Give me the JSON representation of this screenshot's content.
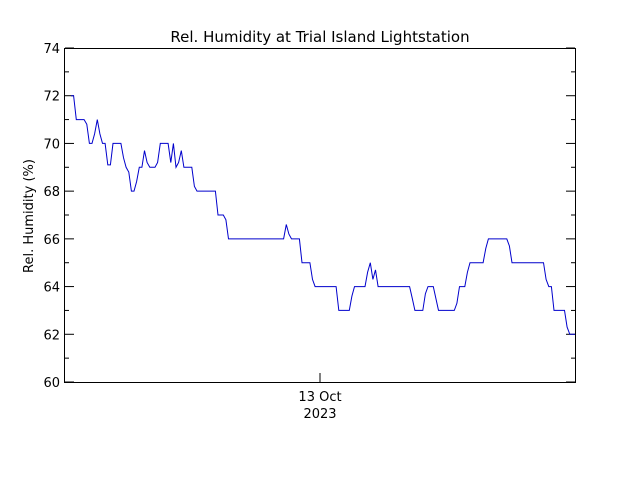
{
  "chart_data": {
    "type": "line",
    "title": "Rel. Humidity at Trial Island Lightstation",
    "ylabel": "Rel. Humidity (%)",
    "xlabel": "",
    "x_tick_label": {
      "line1": "13 Oct",
      "line2": "2023"
    },
    "ylim": [
      60,
      74
    ],
    "y_ticks": [
      60,
      62,
      64,
      66,
      68,
      70,
      72,
      74
    ],
    "y_tick_labels": [
      "60",
      "62",
      "64",
      "66",
      "68",
      "70",
      "72",
      "74"
    ],
    "grid": false,
    "line_color": "#0000cc",
    "series": [
      {
        "values": [
          72,
          72,
          71,
          71,
          71,
          71,
          70.8,
          70,
          70,
          70.4,
          71,
          70.4,
          70,
          70,
          69.1,
          69.1,
          70,
          70,
          70,
          70,
          69.4,
          69,
          68.8,
          68,
          68,
          68.4,
          69,
          69,
          69.7,
          69.2,
          69,
          69,
          69,
          69.2,
          70,
          70,
          70,
          70,
          69.2,
          70,
          69,
          69.2,
          69.7,
          69,
          69,
          69,
          69,
          68.2,
          68,
          68,
          68,
          68,
          68,
          68,
          68,
          68,
          67,
          67,
          67,
          66.8,
          66,
          66,
          66,
          66,
          66,
          66,
          66,
          66,
          66,
          66,
          66,
          66,
          66,
          66,
          66,
          66,
          66,
          66,
          66,
          66,
          66,
          66,
          66.6,
          66.2,
          66,
          66,
          66,
          66,
          65,
          65,
          65,
          65,
          64.3,
          64,
          64,
          64,
          64,
          64,
          64,
          64,
          64,
          64,
          63,
          63,
          63,
          63,
          63,
          63.6,
          64,
          64,
          64,
          64,
          64,
          64.6,
          65,
          64.3,
          64.7,
          64,
          64,
          64,
          64,
          64,
          64,
          64,
          64,
          64,
          64,
          64,
          64,
          64,
          63.5,
          63,
          63,
          63,
          63,
          63.7,
          64,
          64,
          64,
          63.5,
          63,
          63,
          63,
          63,
          63,
          63,
          63,
          63.3,
          64,
          64,
          64,
          64.6,
          65,
          65,
          65,
          65,
          65,
          65,
          65.6,
          66,
          66,
          66,
          66,
          66,
          66,
          66,
          66,
          65.7,
          65,
          65,
          65,
          65,
          65,
          65,
          65,
          65,
          65,
          65,
          65,
          65,
          65,
          64.3,
          64,
          64,
          63,
          63,
          63,
          63,
          63,
          62.3,
          62,
          62,
          62
        ]
      }
    ]
  }
}
